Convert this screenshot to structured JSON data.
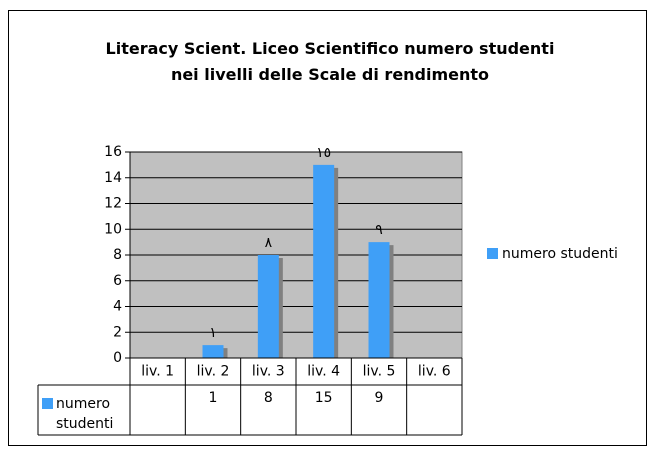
{
  "chart_data": {
    "type": "bar",
    "title": "Literacy Scient. Liceo Scientifico numero studenti nei livelli delle Scale di rendimento",
    "categories": [
      "liv. 1",
      "liv. 2",
      "liv. 3",
      "liv. 4",
      "liv. 5",
      "liv. 6"
    ],
    "series": [
      {
        "name": "numero studenti",
        "color": "#3f9ff7",
        "values": [
          null,
          1,
          8,
          15,
          9,
          null
        ],
        "value_labels": [
          null,
          "١",
          "٨",
          "١٥",
          "٩",
          null
        ]
      }
    ],
    "ylim": [
      0,
      16
    ],
    "yticks": [
      0,
      2,
      4,
      6,
      8,
      10,
      12,
      14,
      16
    ],
    "grid": true,
    "legend": "right",
    "data_table": true
  }
}
